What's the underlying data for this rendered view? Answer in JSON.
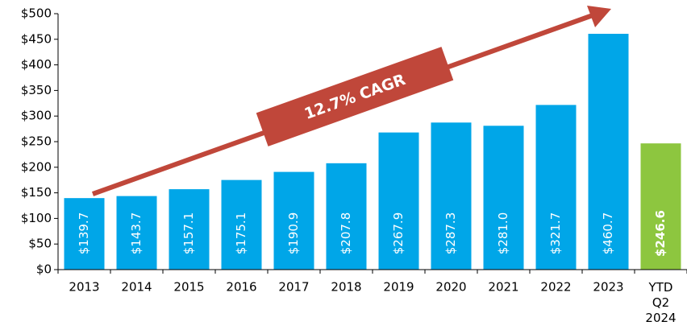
{
  "chart_data": {
    "type": "bar",
    "categories": [
      "2013",
      "2014",
      "2015",
      "2016",
      "2017",
      "2018",
      "2019",
      "2020",
      "2021",
      "2022",
      "2023",
      "YTD Q2 2024"
    ],
    "values": [
      139.7,
      143.7,
      157.1,
      175.1,
      190.9,
      207.8,
      267.9,
      287.3,
      281.0,
      321.7,
      460.7,
      246.6
    ],
    "value_labels": [
      "$139.7",
      "$143.7",
      "$157.1",
      "$175.1",
      "$190.9",
      "$207.8",
      "$267.9",
      "$287.3",
      "$281.0",
      "$321.7",
      "$460.7",
      "$246.6"
    ],
    "colors": [
      "#00a6e8",
      "#00a6e8",
      "#00a6e8",
      "#00a6e8",
      "#00a6e8",
      "#00a6e8",
      "#00a6e8",
      "#00a6e8",
      "#00a6e8",
      "#00a6e8",
      "#00a6e8",
      "#8dc63f"
    ],
    "value_label_weights": [
      "normal",
      "normal",
      "normal",
      "normal",
      "normal",
      "normal",
      "normal",
      "normal",
      "normal",
      "normal",
      "normal",
      "bold"
    ],
    "ylim": [
      0,
      500
    ],
    "yticks": [
      {
        "value": 0,
        "label": "$0"
      },
      {
        "value": 50,
        "label": "$50"
      },
      {
        "value": 100,
        "label": "$100"
      },
      {
        "value": 150,
        "label": "$150"
      },
      {
        "value": 200,
        "label": "$200"
      },
      {
        "value": 250,
        "label": "$250"
      },
      {
        "value": 300,
        "label": "$300"
      },
      {
        "value": 350,
        "label": "$350"
      },
      {
        "value": 400,
        "label": "$400"
      },
      {
        "value": 450,
        "label": "$450"
      },
      {
        "value": 500,
        "label": "$500"
      }
    ],
    "annotation": "12.7% CAGR"
  }
}
